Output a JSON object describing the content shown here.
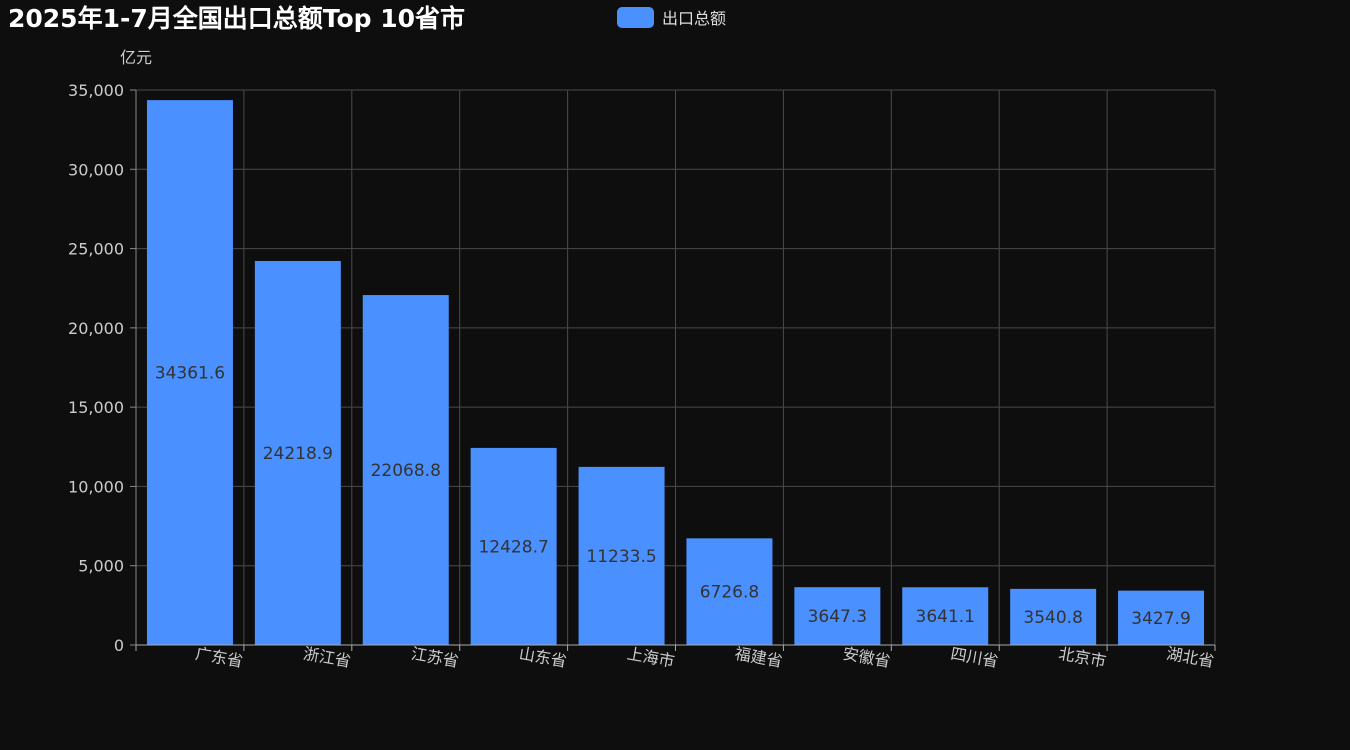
{
  "title": "2025年1-7月全国出口总额Top 10省市",
  "legend": {
    "label": "出口总额",
    "color": "#4a90ff"
  },
  "colors": {
    "background": "#0e0e0e",
    "bar": "#4a90ff",
    "grid": "#4a4a4a",
    "axis_text": "#cccccc",
    "value_text": "#333333"
  },
  "chart_data": {
    "type": "bar",
    "title": "2025年1-7月全国出口总额Top 10省市",
    "ylabel": "亿元",
    "xlabel": "",
    "ylim": [
      0,
      35000
    ],
    "yticks": [
      0,
      5000,
      10000,
      15000,
      20000,
      25000,
      30000,
      35000
    ],
    "ytick_labels": [
      "0",
      "5,000",
      "10,000",
      "15,000",
      "20,000",
      "25,000",
      "30,000",
      "35,000"
    ],
    "categories": [
      "广东省",
      "浙江省",
      "江苏省",
      "山东省",
      "上海市",
      "福建省",
      "安徽省",
      "四川省",
      "北京市",
      "湖北省"
    ],
    "series": [
      {
        "name": "出口总额",
        "values": [
          34361.6,
          24218.9,
          22068.8,
          12428.7,
          11233.5,
          6726.8,
          3647.3,
          3641.1,
          3540.8,
          3427.9
        ],
        "value_labels": [
          "34361.6",
          "24218.9",
          "22068.8",
          "12428.7",
          "11233.5",
          "6726.8",
          "3647.3",
          "3641.1",
          "3540.8",
          "3427.9"
        ]
      }
    ],
    "grid": true,
    "legend_position": "top-center"
  }
}
